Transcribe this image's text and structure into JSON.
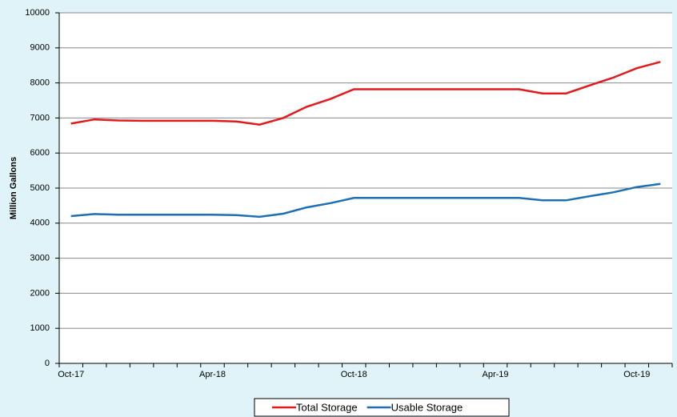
{
  "chart_data": {
    "type": "line",
    "y_label": "Million Gallons",
    "categories": [
      "Oct-17",
      null,
      null,
      null,
      null,
      null,
      "Apr-18",
      null,
      null,
      null,
      null,
      null,
      "Oct-18",
      null,
      null,
      null,
      null,
      null,
      "Apr-19",
      null,
      null,
      null,
      null,
      null,
      "Oct-19",
      null
    ],
    "series": [
      {
        "name": "Total Storage",
        "color": "#e31a1c",
        "values": [
          6840,
          6960,
          6930,
          6920,
          6920,
          6920,
          6920,
          6900,
          6810,
          7000,
          7320,
          7540,
          7820,
          7820,
          7820,
          7820,
          7820,
          7820,
          7820,
          7820,
          7700,
          7700,
          7930,
          8150,
          8420,
          8600
        ]
      },
      {
        "name": "Usable Storage",
        "color": "#1f6fb4",
        "values": [
          4200,
          4260,
          4240,
          4240,
          4240,
          4240,
          4240,
          4230,
          4180,
          4270,
          4450,
          4570,
          4720,
          4720,
          4720,
          4720,
          4720,
          4720,
          4720,
          4720,
          4650,
          4650,
          4770,
          4880,
          5030,
          5120
        ]
      }
    ],
    "ylim": [
      0,
      10000
    ],
    "yticks": [
      0,
      1000,
      2000,
      3000,
      4000,
      5000,
      6000,
      7000,
      8000,
      9000,
      10000
    ],
    "grid": true,
    "legend": "bottom"
  }
}
